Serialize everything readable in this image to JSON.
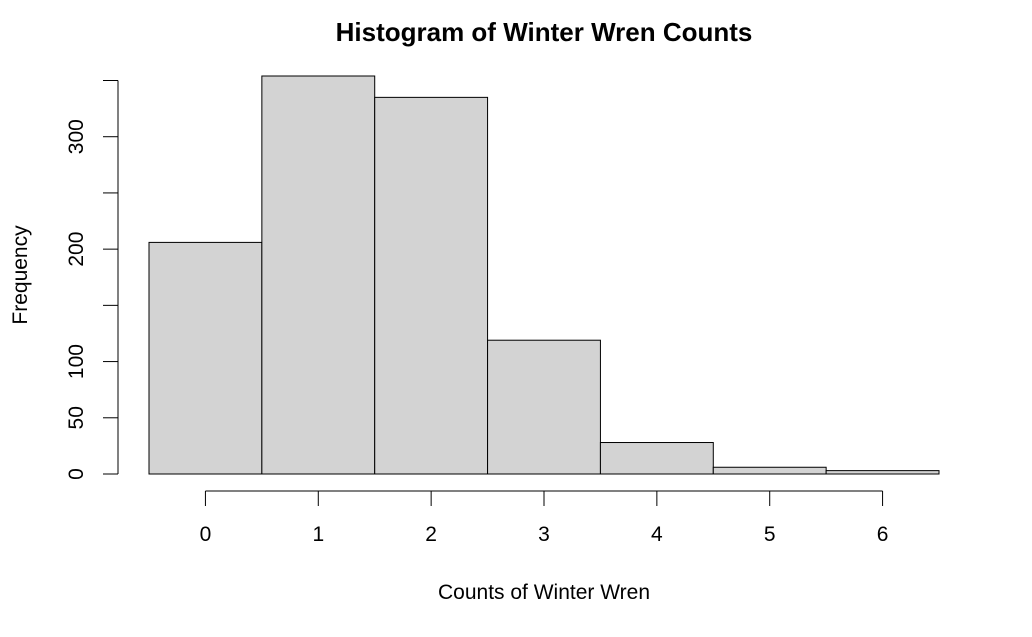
{
  "chart_data": {
    "type": "bar",
    "title": "Histogram of Winter Wren Counts",
    "xlabel": "Counts of Winter Wren",
    "ylabel": "Frequency",
    "categories": [
      "0",
      "1",
      "2",
      "3",
      "4",
      "5",
      "6"
    ],
    "x": [
      0,
      1,
      2,
      3,
      4,
      5,
      6
    ],
    "values": [
      206,
      354,
      335,
      119,
      28,
      6,
      3
    ],
    "bin_width": 1,
    "xlim": [
      -0.5,
      6.5
    ],
    "ylim": [
      0,
      354
    ],
    "x_ticks": [
      0,
      1,
      2,
      3,
      4,
      5,
      6
    ],
    "y_ticks": [
      0,
      50,
      100,
      150,
      200,
      250,
      300,
      350
    ],
    "y_tick_labels": [
      "0",
      "50",
      "100",
      "",
      "200",
      "",
      "300",
      ""
    ],
    "grid": false,
    "bar_fill": "#d3d3d3",
    "bar_stroke": "#000000"
  }
}
